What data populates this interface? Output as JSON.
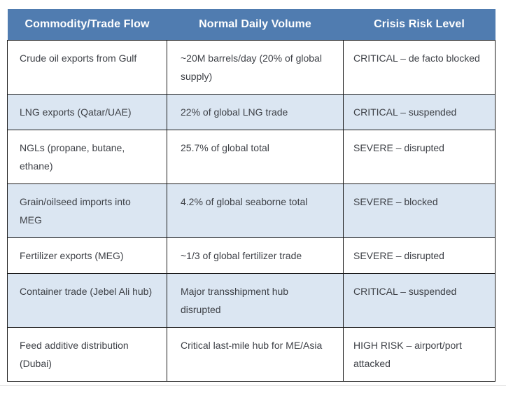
{
  "theme": {
    "page-bg": "#ffffff",
    "header-bg": "#507cb0",
    "header-text": "#ffffff",
    "row-bg": "#ffffff",
    "row-alt-bg": "#dbe6f2",
    "border-color": "#1b1b1b",
    "text-color": "#3e4147",
    "divider-color": "#e8e8e8"
  },
  "table": {
    "columns": [
      {
        "label": "Commodity/Trade Flow"
      },
      {
        "label": "Normal Daily Volume"
      },
      {
        "label": "Crisis Risk Level"
      }
    ],
    "rows": [
      {
        "commodity": "Crude oil exports from Gulf",
        "volume": "~20M barrels/day (20% of global supply)",
        "risk": "CRITICAL – de facto blocked"
      },
      {
        "commodity": "LNG exports (Qatar/UAE)",
        "volume": "22% of global LNG trade",
        "risk": "CRITICAL – suspended"
      },
      {
        "commodity": "NGLs (propane, butane, ethane)",
        "volume": "25.7% of global total",
        "risk": "SEVERE – disrupted"
      },
      {
        "commodity": "Grain/oilseed imports into MEG",
        "volume": "4.2% of global seaborne total",
        "risk": "SEVERE – blocked"
      },
      {
        "commodity": "Fertilizer exports (MEG)",
        "volume": "~1/3 of global fertilizer trade",
        "risk": "SEVERE – disrupted"
      },
      {
        "commodity": "Container trade (Jebel Ali hub)",
        "volume": "Major transshipment hub disrupted",
        "risk": "CRITICAL – suspended"
      },
      {
        "commodity": "Feed additive distribution (Dubai)",
        "volume": "Critical last-mile hub for ME/Asia",
        "risk": "HIGH RISK – airport/port attacked"
      }
    ]
  }
}
